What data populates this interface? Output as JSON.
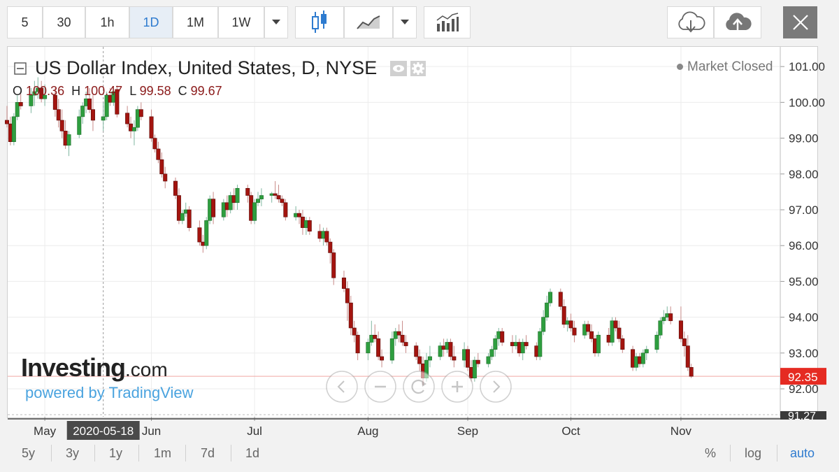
{
  "toolbar": {
    "intervals": [
      "5",
      "30",
      "1h",
      "1D",
      "1M",
      "1W"
    ],
    "active_interval": "1D",
    "icons": [
      "candlestick-icon",
      "line-chart-icon",
      "indicators-icon",
      "cloud-download-icon",
      "cloud-upload-icon",
      "close-icon"
    ]
  },
  "header": {
    "title": "US Dollar Index, United States, D, NYSE",
    "ohlc": {
      "o_label": "O",
      "o": "100.36",
      "h_label": "H",
      "h": "100.47",
      "l_label": "L",
      "l": "99.58",
      "c_label": "C",
      "c": "99.67"
    },
    "market_status": "Market Closed"
  },
  "branding": {
    "logo": "Investing",
    "logo_suffix": ".com",
    "powered_by": "powered by TradingView"
  },
  "bottom": {
    "ranges": [
      "5y",
      "3y",
      "1y",
      "1m",
      "7d",
      "1d"
    ],
    "options": [
      "%",
      "log",
      "auto"
    ],
    "active_option": "auto"
  },
  "colors": {
    "up": "#2e9e3f",
    "down": "#a3140f",
    "accent": "#2e7bcf",
    "price_label": "#e52b22"
  },
  "chart_data": {
    "type": "candlestick",
    "title": "US Dollar Index, United States, D, NYSE",
    "x_labels": [
      "May",
      "Jun",
      "Jul",
      "Aug",
      "Sep",
      "Oct",
      "Nov"
    ],
    "x_label_dates": [
      "2020-05-01",
      "2020-06-01",
      "2020-07-01",
      "2020-08-03",
      "2020-09-01",
      "2020-10-01",
      "2020-11-02"
    ],
    "crosshair_date": "2020-05-18",
    "y_ticks": [
      "101.00",
      "100.00",
      "99.00",
      "98.00",
      "97.00",
      "96.00",
      "95.00",
      "94.00",
      "93.00",
      "92.00"
    ],
    "ylim": [
      91.22,
      101.55
    ],
    "last_price": "92.35",
    "last_price_value": 92.35,
    "low_marker": "91.27",
    "low_marker_value": 91.27,
    "grid": true,
    "ohlc": [
      [
        99.5,
        99.9,
        99.3,
        99.4
      ],
      [
        99.4,
        99.6,
        98.8,
        98.9
      ],
      [
        98.9,
        99.7,
        98.8,
        99.6
      ],
      [
        99.6,
        100.2,
        99.5,
        100.0
      ],
      [
        100.0,
        100.3,
        99.8,
        99.9
      ],
      [
        99.9,
        100.4,
        99.7,
        100.2
      ],
      [
        100.2,
        100.6,
        99.9,
        100.3
      ],
      [
        100.3,
        100.7,
        100.1,
        100.4
      ],
      [
        100.4,
        100.6,
        100.0,
        100.1
      ],
      [
        100.1,
        100.5,
        99.9,
        100.2
      ],
      [
        100.2,
        100.4,
        99.6,
        99.8
      ],
      [
        99.8,
        100.1,
        99.3,
        99.5
      ],
      [
        99.5,
        99.8,
        99.0,
        99.2
      ],
      [
        99.2,
        99.5,
        98.7,
        98.8
      ],
      [
        98.8,
        99.2,
        98.5,
        99.1
      ],
      [
        99.1,
        99.8,
        99.0,
        99.6
      ],
      [
        99.6,
        100.0,
        99.4,
        99.9
      ],
      [
        99.9,
        100.3,
        99.7,
        100.1
      ],
      [
        100.1,
        100.4,
        99.7,
        99.8
      ],
      [
        99.8,
        100.2,
        99.2,
        99.5
      ],
      [
        99.5,
        100.0,
        99.2,
        99.6
      ],
      [
        99.6,
        100.3,
        99.5,
        100.2
      ],
      [
        100.2,
        100.4,
        99.9,
        100.0
      ],
      [
        100.0,
        100.3,
        99.9,
        100.3
      ],
      [
        100.36,
        100.47,
        99.58,
        99.67
      ],
      [
        99.7,
        99.9,
        99.3,
        99.4
      ],
      [
        99.4,
        99.6,
        99.0,
        99.2
      ],
      [
        99.2,
        99.5,
        98.8,
        99.3
      ],
      [
        99.3,
        99.9,
        99.2,
        99.8
      ],
      [
        99.8,
        100.0,
        99.5,
        99.6
      ],
      [
        99.6,
        99.8,
        98.9,
        99.0
      ],
      [
        99.0,
        99.1,
        98.6,
        98.7
      ],
      [
        98.7,
        98.9,
        98.3,
        98.4
      ],
      [
        98.4,
        98.6,
        97.9,
        98.0
      ],
      [
        98.0,
        98.2,
        97.6,
        97.8
      ],
      [
        97.8,
        97.9,
        97.3,
        97.4
      ],
      [
        97.4,
        97.6,
        96.6,
        96.7
      ],
      [
        96.7,
        97.0,
        96.6,
        96.9
      ],
      [
        96.9,
        97.2,
        96.8,
        97.0
      ],
      [
        97.0,
        97.1,
        96.4,
        96.5
      ],
      [
        96.5,
        96.7,
        96.0,
        96.1
      ],
      [
        96.1,
        96.3,
        95.8,
        96.0
      ],
      [
        96.0,
        96.8,
        95.9,
        96.7
      ],
      [
        96.7,
        97.4,
        96.6,
        97.3
      ],
      [
        97.3,
        97.5,
        96.6,
        96.8
      ],
      [
        96.8,
        97.3,
        96.7,
        97.2
      ],
      [
        97.2,
        97.4,
        96.8,
        97.0
      ],
      [
        97.0,
        97.5,
        96.9,
        97.4
      ],
      [
        97.4,
        97.6,
        97.0,
        97.2
      ],
      [
        97.2,
        97.7,
        97.0,
        97.6
      ],
      [
        97.6,
        97.7,
        97.2,
        97.4
      ],
      [
        97.4,
        97.5,
        96.6,
        96.7
      ],
      [
        96.7,
        97.3,
        96.6,
        97.2
      ],
      [
        97.2,
        97.5,
        97.1,
        97.3
      ],
      [
        97.3,
        97.6,
        97.1,
        97.4
      ],
      [
        97.4,
        97.5,
        97.2,
        97.45
      ],
      [
        97.45,
        97.8,
        97.3,
        97.4
      ],
      [
        97.4,
        97.7,
        97.2,
        97.3
      ],
      [
        97.3,
        97.4,
        97.1,
        97.2
      ],
      [
        97.2,
        97.3,
        96.7,
        96.8
      ],
      [
        96.8,
        97.1,
        96.7,
        96.9
      ],
      [
        96.9,
        97.0,
        96.6,
        96.8
      ],
      [
        96.8,
        97.0,
        96.3,
        96.5
      ],
      [
        96.5,
        96.8,
        96.3,
        96.7
      ],
      [
        96.7,
        96.8,
        96.3,
        96.4
      ],
      [
        96.4,
        96.6,
        96.1,
        96.2
      ],
      [
        96.2,
        96.5,
        96.0,
        96.4
      ],
      [
        96.4,
        96.5,
        96.0,
        96.1
      ],
      [
        96.1,
        96.2,
        95.5,
        95.8
      ],
      [
        95.8,
        95.9,
        94.9,
        95.1
      ],
      [
        95.1,
        95.3,
        94.7,
        94.8
      ],
      [
        94.8,
        95.0,
        93.9,
        94.4
      ],
      [
        94.4,
        94.6,
        93.5,
        93.7
      ],
      [
        93.7,
        93.9,
        93.3,
        93.5
      ],
      [
        93.5,
        93.6,
        92.8,
        93.0
      ],
      [
        93.0,
        93.4,
        92.8,
        93.3
      ],
      [
        93.3,
        93.9,
        93.2,
        93.5
      ],
      [
        93.5,
        93.8,
        93.3,
        93.4
      ],
      [
        93.4,
        93.6,
        92.8,
        92.9
      ],
      [
        92.9,
        93.1,
        92.6,
        92.8
      ],
      [
        92.8,
        93.6,
        92.7,
        93.4
      ],
      [
        93.4,
        93.7,
        93.2,
        93.6
      ],
      [
        93.6,
        93.8,
        93.3,
        93.5
      ],
      [
        93.5,
        93.9,
        93.2,
        93.3
      ],
      [
        93.3,
        93.5,
        93.0,
        93.2
      ],
      [
        93.2,
        93.3,
        92.8,
        92.9
      ],
      [
        92.9,
        93.1,
        92.5,
        92.7
      ],
      [
        92.7,
        92.9,
        92.1,
        92.3
      ],
      [
        92.3,
        93.0,
        92.2,
        92.8
      ],
      [
        92.8,
        93.2,
        92.6,
        92.9
      ],
      [
        92.9,
        93.3,
        92.8,
        93.2
      ],
      [
        93.2,
        93.4,
        92.9,
        93.1
      ],
      [
        93.1,
        93.4,
        93.0,
        93.3
      ],
      [
        93.3,
        93.4,
        92.8,
        92.9
      ],
      [
        92.9,
        93.2,
        92.6,
        92.8
      ],
      [
        92.8,
        93.3,
        92.6,
        93.1
      ],
      [
        93.1,
        93.2,
        92.5,
        92.6
      ],
      [
        92.6,
        92.8,
        92.2,
        92.3
      ],
      [
        92.3,
        92.9,
        92.2,
        92.8
      ],
      [
        92.8,
        93.0,
        92.6,
        92.7
      ],
      [
        92.7,
        93.0,
        92.6,
        92.9
      ],
      [
        92.9,
        93.2,
        92.8,
        93.1
      ],
      [
        93.1,
        93.5,
        92.9,
        93.4
      ],
      [
        93.4,
        93.7,
        93.2,
        93.6
      ],
      [
        93.6,
        93.7,
        93.2,
        93.3
      ],
      [
        93.3,
        93.5,
        93.0,
        93.2
      ],
      [
        93.2,
        93.5,
        93.1,
        93.3
      ],
      [
        93.3,
        93.4,
        92.9,
        93.0
      ],
      [
        93.0,
        93.4,
        92.8,
        93.3
      ],
      [
        93.3,
        93.5,
        93.1,
        93.2
      ],
      [
        93.2,
        93.3,
        92.8,
        92.9
      ],
      [
        92.9,
        93.7,
        92.8,
        93.6
      ],
      [
        93.6,
        94.2,
        93.5,
        94.0
      ],
      [
        94.0,
        94.6,
        93.9,
        94.4
      ],
      [
        94.4,
        94.8,
        94.3,
        94.7
      ],
      [
        94.7,
        94.8,
        94.2,
        94.3
      ],
      [
        94.3,
        94.5,
        93.7,
        93.8
      ],
      [
        93.8,
        94.0,
        93.6,
        93.9
      ],
      [
        93.9,
        94.1,
        93.6,
        93.7
      ],
      [
        93.7,
        93.9,
        93.3,
        93.5
      ],
      [
        93.5,
        93.9,
        93.4,
        93.8
      ],
      [
        93.8,
        93.9,
        93.5,
        93.6
      ],
      [
        93.6,
        93.8,
        93.3,
        93.4
      ],
      [
        93.4,
        93.5,
        92.9,
        93.0
      ],
      [
        93.0,
        93.6,
        92.9,
        93.5
      ],
      [
        93.5,
        93.7,
        93.2,
        93.3
      ],
      [
        93.3,
        94.0,
        93.2,
        93.9
      ],
      [
        93.9,
        94.0,
        93.6,
        93.7
      ],
      [
        93.7,
        93.9,
        93.3,
        93.4
      ],
      [
        93.4,
        93.5,
        93.0,
        93.1
      ],
      [
        93.1,
        93.2,
        92.5,
        92.6
      ],
      [
        92.6,
        93.0,
        92.5,
        92.9
      ],
      [
        92.9,
        93.0,
        92.6,
        92.7
      ],
      [
        92.7,
        93.1,
        92.6,
        93.0
      ],
      [
        93.0,
        93.2,
        92.8,
        93.1
      ],
      [
        93.1,
        93.6,
        93.0,
        93.5
      ],
      [
        93.5,
        94.0,
        93.4,
        93.9
      ],
      [
        93.9,
        94.2,
        93.8,
        94.0
      ],
      [
        94.0,
        94.3,
        93.9,
        94.1
      ],
      [
        94.1,
        94.3,
        93.8,
        93.9
      ],
      [
        93.9,
        94.3,
        93.3,
        93.4
      ],
      [
        93.4,
        93.6,
        92.9,
        93.2
      ],
      [
        93.2,
        93.5,
        92.5,
        92.6
      ],
      [
        92.6,
        92.7,
        92.3,
        92.35
      ]
    ]
  }
}
